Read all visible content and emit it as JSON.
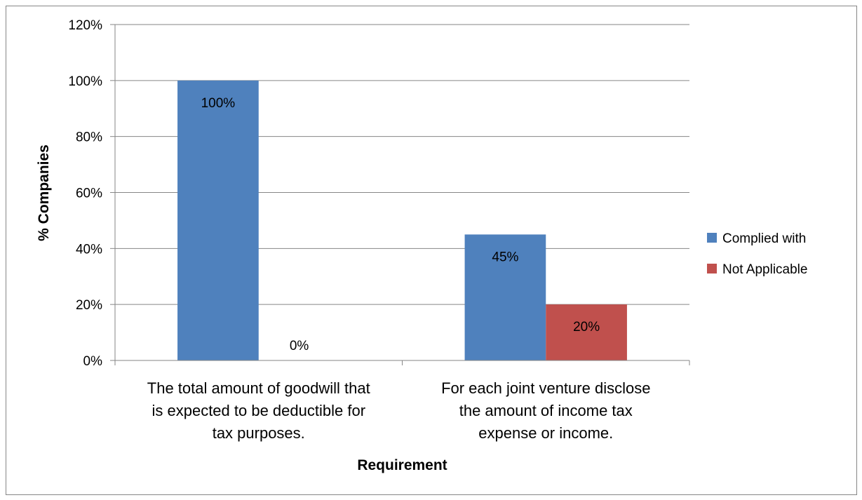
{
  "chart_data": {
    "type": "bar",
    "categories": [
      [
        "The total amount of goodwill that",
        "is expected to be deductible for",
        "tax purposes."
      ],
      [
        "For each joint venture disclose",
        "the amount of income tax",
        "expense or income."
      ]
    ],
    "series": [
      {
        "name": "Complied with",
        "values": [
          100,
          45
        ],
        "color": "#4F81BD",
        "labels": [
          "100%",
          "45%"
        ]
      },
      {
        "name": "Not Applicable",
        "values": [
          0,
          20
        ],
        "color": "#C0504D",
        "labels": [
          "0%",
          "20%"
        ]
      }
    ],
    "ylim": [
      0,
      120
    ],
    "yticks": [
      0,
      20,
      40,
      60,
      80,
      100,
      120
    ],
    "ytick_labels": [
      "0%",
      "20%",
      "40%",
      "60%",
      "80%",
      "100%",
      "120%"
    ],
    "xlabel": "Requirement",
    "ylabel": "% Companies",
    "grid": true,
    "legend_position": "right"
  }
}
